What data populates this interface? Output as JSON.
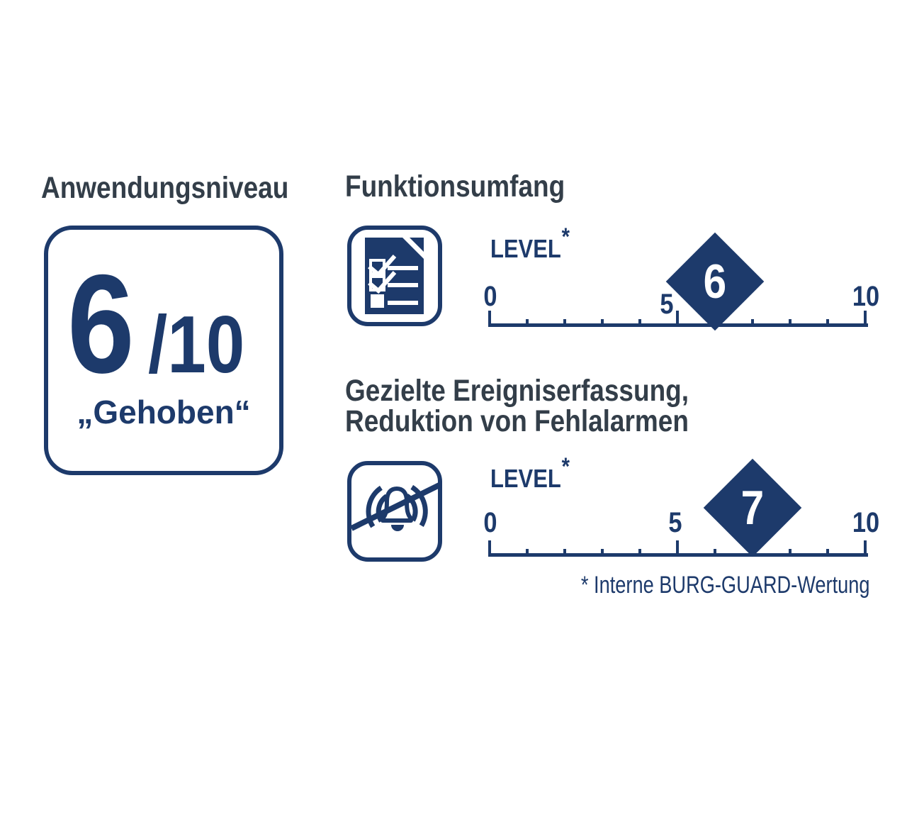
{
  "colors": {
    "navy": "#1d3a6b",
    "heading_gray": "#333e49",
    "background": "#ffffff",
    "diamond_text": "#ffffff"
  },
  "left_panel": {
    "heading": "Anwendungsniveau",
    "score_value": "6",
    "score_max": "/10",
    "score_word": "„Gehoben“"
  },
  "sections": {
    "funktionsumfang": {
      "heading": "Funktionsumfang",
      "icon": "checklist-document-icon",
      "level_label": "LEVEL",
      "level_asterisk": "*",
      "scale": {
        "min": 0,
        "max": 10,
        "label_min": "0",
        "label_mid": "5",
        "label_max": "10",
        "value": 6,
        "value_label": "6"
      }
    },
    "ereigniserfassung": {
      "heading_line1": "Gezielte Ereigniserfassung,",
      "heading_line2": "Reduktion von Fehlalarmen",
      "icon": "muted-alarm-bell-icon",
      "level_label": "LEVEL",
      "level_asterisk": "*",
      "scale": {
        "min": 0,
        "max": 10,
        "label_min": "0",
        "label_mid": "5",
        "label_max": "10",
        "value": 7,
        "value_label": "7"
      }
    }
  },
  "footnote": "* Interne BURG-GUARD-Wertung"
}
